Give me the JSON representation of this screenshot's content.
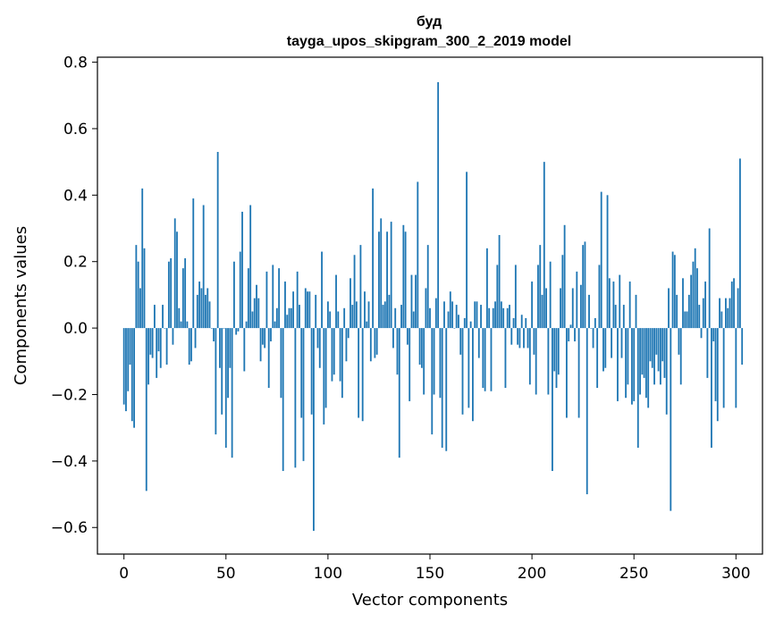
{
  "chart_data": {
    "type": "bar",
    "title": "буд",
    "subtitle": "tayga_upos_skipgram_300_2_2019 model",
    "xlabel": "Vector components",
    "ylabel": "Components values",
    "xlim": [
      -13,
      313
    ],
    "ylim": [
      -0.68,
      0.815
    ],
    "xticks": [
      0,
      50,
      100,
      150,
      200,
      250,
      300
    ],
    "xtick_labels": [
      "0",
      "50",
      "100",
      "150",
      "200",
      "250",
      "300"
    ],
    "yticks": [
      -0.6,
      -0.4,
      -0.2,
      0.0,
      0.2,
      0.4,
      0.6,
      0.8
    ],
    "ytick_labels": [
      "−0.6",
      "−0.4",
      "−0.2",
      "0.0",
      "0.2",
      "0.4",
      "0.6",
      "0.8"
    ],
    "bar_color": "#1f77b4",
    "values": [
      -0.23,
      -0.25,
      -0.19,
      -0.11,
      -0.28,
      -0.3,
      0.25,
      0.2,
      0.12,
      0.42,
      0.24,
      -0.49,
      -0.17,
      -0.08,
      -0.09,
      0.07,
      -0.15,
      -0.07,
      -0.12,
      0.07,
      0.0,
      -0.11,
      0.2,
      0.21,
      -0.05,
      0.33,
      0.29,
      0.06,
      0.02,
      0.18,
      0.21,
      0.02,
      -0.11,
      -0.1,
      0.39,
      -0.06,
      0.1,
      0.14,
      0.12,
      0.37,
      0.1,
      0.12,
      0.08,
      0.0,
      -0.04,
      -0.32,
      0.53,
      -0.12,
      -0.26,
      0.0,
      -0.36,
      -0.21,
      -0.12,
      -0.39,
      0.2,
      -0.02,
      -0.01,
      0.23,
      0.35,
      -0.13,
      0.02,
      0.18,
      0.37,
      0.05,
      0.09,
      0.13,
      0.09,
      -0.1,
      -0.05,
      -0.06,
      0.17,
      -0.18,
      -0.04,
      0.19,
      0.02,
      0.06,
      0.18,
      -0.21,
      -0.43,
      0.14,
      0.04,
      0.06,
      0.06,
      0.11,
      -0.42,
      0.17,
      0.07,
      -0.27,
      -0.4,
      0.12,
      0.11,
      0.11,
      -0.26,
      -0.61,
      0.1,
      -0.06,
      -0.12,
      0.23,
      -0.29,
      -0.24,
      0.08,
      0.05,
      -0.16,
      -0.14,
      0.16,
      0.05,
      -0.16,
      -0.21,
      0.06,
      -0.1,
      -0.03,
      0.15,
      0.07,
      0.22,
      0.08,
      -0.27,
      0.25,
      -0.28,
      0.11,
      0.02,
      0.08,
      -0.1,
      0.42,
      -0.09,
      -0.08,
      0.29,
      0.33,
      0.07,
      0.08,
      0.29,
      0.1,
      0.32,
      -0.06,
      0.06,
      -0.14,
      -0.39,
      0.07,
      0.31,
      0.29,
      -0.05,
      -0.22,
      0.16,
      0.05,
      0.16,
      0.44,
      -0.11,
      -0.12,
      -0.2,
      0.12,
      0.25,
      0.06,
      -0.32,
      -0.2,
      0.09,
      0.74,
      -0.21,
      -0.36,
      0.08,
      -0.37,
      0.05,
      0.11,
      0.08,
      0.0,
      0.07,
      0.04,
      -0.08,
      -0.26,
      0.03,
      0.47,
      -0.24,
      0.02,
      -0.28,
      0.08,
      0.08,
      -0.09,
      0.07,
      -0.18,
      -0.19,
      0.24,
      0.06,
      -0.19,
      0.06,
      0.08,
      0.19,
      0.28,
      0.08,
      0.06,
      -0.18,
      0.06,
      0.07,
      -0.05,
      0.03,
      0.19,
      -0.05,
      -0.06,
      0.04,
      -0.06,
      0.03,
      -0.06,
      -0.17,
      0.14,
      -0.08,
      -0.2,
      0.19,
      0.25,
      0.1,
      0.5,
      0.12,
      -0.2,
      0.2,
      -0.43,
      -0.13,
      -0.18,
      -0.14,
      0.12,
      0.22,
      0.31,
      -0.27,
      -0.04,
      0.01,
      0.12,
      -0.04,
      0.17,
      -0.27,
      0.13,
      0.25,
      0.26,
      -0.5,
      0.1,
      0.0,
      -0.06,
      0.03,
      -0.18,
      0.19,
      0.41,
      -0.13,
      -0.12,
      0.4,
      0.15,
      -0.09,
      0.14,
      0.07,
      -0.22,
      0.16,
      -0.09,
      0.07,
      -0.21,
      -0.17,
      0.14,
      -0.23,
      -0.22,
      0.1,
      -0.36,
      -0.2,
      -0.14,
      -0.15,
      -0.21,
      -0.24,
      -0.1,
      -0.12,
      -0.17,
      -0.08,
      -0.13,
      -0.17,
      -0.1,
      -0.15,
      -0.26,
      0.12,
      -0.55,
      0.23,
      0.22,
      0.1,
      -0.08,
      -0.17,
      0.15,
      0.05,
      0.05,
      0.1,
      0.16,
      0.2,
      0.24,
      0.18,
      0.07,
      -0.03,
      0.09,
      0.14,
      -0.15,
      0.3,
      -0.36,
      -0.04,
      -0.22,
      -0.28,
      0.09,
      0.05,
      -0.24,
      0.09,
      0.06,
      0.09,
      0.14,
      0.15,
      -0.24,
      0.12,
      0.51,
      -0.11
    ]
  }
}
